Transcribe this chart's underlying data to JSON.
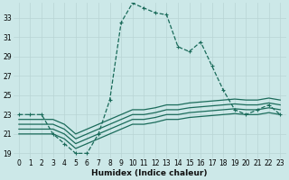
{
  "xlabel": "Humidex (Indice chaleur)",
  "ylabel": "",
  "bg_color": "#cce8e8",
  "grid_color": "#b8d4d4",
  "line_color": "#1a6b5a",
  "xlim": [
    -0.5,
    23.5
  ],
  "ylim": [
    18.5,
    34.5
  ],
  "yticks": [
    19,
    21,
    23,
    25,
    27,
    29,
    31,
    33
  ],
  "xticks": [
    0,
    1,
    2,
    3,
    4,
    5,
    6,
    7,
    8,
    9,
    10,
    11,
    12,
    13,
    14,
    15,
    16,
    17,
    18,
    19,
    20,
    21,
    22,
    23
  ],
  "lines": [
    {
      "x": [
        0,
        1,
        2,
        3,
        4,
        5,
        6,
        7,
        8,
        9,
        10,
        11,
        12,
        13,
        14,
        15,
        16,
        17,
        18,
        19,
        20,
        21,
        22,
        23
      ],
      "y": [
        23,
        23,
        23,
        21,
        20,
        19,
        19,
        21,
        24.5,
        32.5,
        34.5,
        34,
        33.5,
        33.3,
        30,
        29.5,
        30.5,
        28,
        25.5,
        23.5,
        23,
        23.5,
        24,
        23
      ],
      "marker": "+",
      "markersize": 3.5,
      "linestyle": "--",
      "linewidth": 0.9,
      "markevery": 1
    },
    {
      "x": [
        0,
        1,
        2,
        3,
        4,
        5,
        6,
        7,
        8,
        9,
        10,
        11,
        12,
        13,
        14,
        15,
        16,
        17,
        18,
        19,
        20,
        21,
        22,
        23
      ],
      "y": [
        21.0,
        21.0,
        21.0,
        21.0,
        20.5,
        19.5,
        20.0,
        20.5,
        21.0,
        21.5,
        22.0,
        22.0,
        22.2,
        22.5,
        22.5,
        22.7,
        22.8,
        22.9,
        23.0,
        23.1,
        23.0,
        23.0,
        23.2,
        23.0
      ],
      "marker": null,
      "markersize": 0,
      "linestyle": "-",
      "linewidth": 0.9,
      "markevery": 99
    },
    {
      "x": [
        0,
        1,
        2,
        3,
        4,
        5,
        6,
        7,
        8,
        9,
        10,
        11,
        12,
        13,
        14,
        15,
        16,
        17,
        18,
        19,
        20,
        21,
        22,
        23
      ],
      "y": [
        21.5,
        21.5,
        21.5,
        21.5,
        21.0,
        20.0,
        20.5,
        21.0,
        21.5,
        22.0,
        22.5,
        22.5,
        22.7,
        23.0,
        23.0,
        23.2,
        23.3,
        23.4,
        23.5,
        23.6,
        23.5,
        23.5,
        23.7,
        23.5
      ],
      "marker": null,
      "markersize": 0,
      "linestyle": "-",
      "linewidth": 0.9,
      "markevery": 99
    },
    {
      "x": [
        0,
        1,
        2,
        3,
        4,
        5,
        6,
        7,
        8,
        9,
        10,
        11,
        12,
        13,
        14,
        15,
        16,
        17,
        18,
        19,
        20,
        21,
        22,
        23
      ],
      "y": [
        22.0,
        22.0,
        22.0,
        22.0,
        21.5,
        20.5,
        21.0,
        21.5,
        22.0,
        22.5,
        23.0,
        23.0,
        23.2,
        23.5,
        23.5,
        23.7,
        23.8,
        23.9,
        24.0,
        24.1,
        24.0,
        24.0,
        24.2,
        24.0
      ],
      "marker": null,
      "markersize": 0,
      "linestyle": "-",
      "linewidth": 0.9,
      "markevery": 99
    },
    {
      "x": [
        0,
        1,
        2,
        3,
        4,
        5,
        6,
        7,
        8,
        9,
        10,
        11,
        12,
        13,
        14,
        15,
        16,
        17,
        18,
        19,
        20,
        21,
        22,
        23
      ],
      "y": [
        22.5,
        22.5,
        22.5,
        22.5,
        22.0,
        21.0,
        21.5,
        22.0,
        22.5,
        23.0,
        23.5,
        23.5,
        23.7,
        24.0,
        24.0,
        24.2,
        24.3,
        24.4,
        24.5,
        24.6,
        24.5,
        24.5,
        24.7,
        24.5
      ],
      "marker": null,
      "markersize": 0,
      "linestyle": "-",
      "linewidth": 0.9,
      "markevery": 99
    }
  ],
  "tick_fontsize": 5.5,
  "label_fontsize": 6.5
}
